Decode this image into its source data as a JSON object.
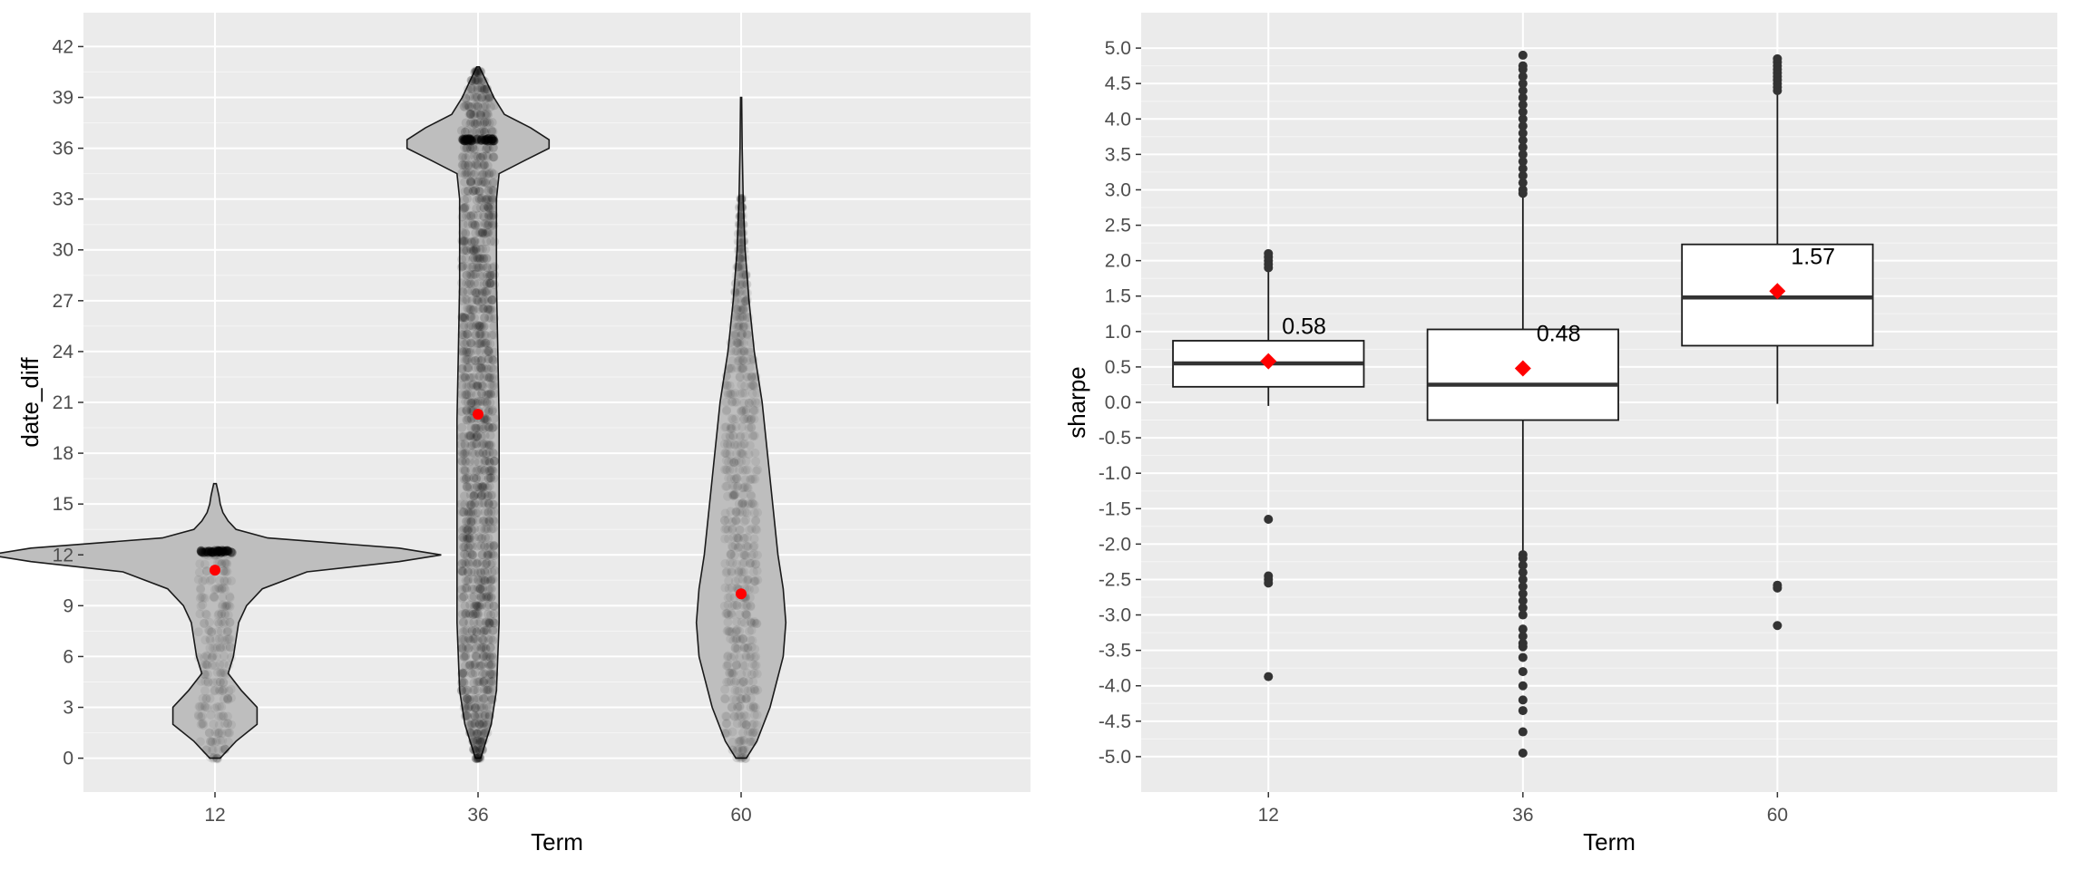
{
  "chart_data": [
    {
      "type": "violin",
      "xlabel": "Term",
      "ylabel": "date_diff",
      "categories": [
        "12",
        "36",
        "60"
      ],
      "ylim": [
        -2,
        44
      ],
      "yticks": [
        0,
        3,
        6,
        9,
        12,
        15,
        18,
        21,
        24,
        27,
        30,
        33,
        36,
        39,
        42
      ],
      "grid": true,
      "means": [
        11.1,
        20.3,
        9.7
      ],
      "mean_color": "#ff0000",
      "violin_fill": "#bebebe",
      "violins": [
        {
          "category": "12",
          "y": [
            0,
            1,
            2,
            3,
            4,
            5,
            6,
            7,
            8,
            9,
            10,
            11,
            11.6,
            12,
            12.4,
            13,
            13.5,
            14,
            14.5,
            15,
            15.5,
            16.2
          ],
          "width": [
            0.02,
            0.08,
            0.16,
            0.16,
            0.1,
            0.05,
            0.07,
            0.08,
            0.09,
            0.12,
            0.18,
            0.35,
            0.7,
            0.86,
            0.7,
            0.2,
            0.08,
            0.05,
            0.03,
            0.02,
            0.015,
            0.005
          ]
        },
        {
          "category": "36",
          "y": [
            0,
            2,
            4,
            8,
            12,
            16,
            20,
            24,
            28,
            31,
            33,
            34.5,
            35.3,
            36,
            36.5,
            37.2,
            38,
            39,
            40,
            40.8
          ],
          "width": [
            0.01,
            0.05,
            0.07,
            0.08,
            0.08,
            0.08,
            0.08,
            0.075,
            0.07,
            0.07,
            0.07,
            0.08,
            0.18,
            0.27,
            0.27,
            0.2,
            0.1,
            0.06,
            0.03,
            0.005
          ]
        },
        {
          "category": "60",
          "y": [
            0,
            1,
            3,
            6,
            8,
            10,
            12,
            15,
            18,
            21,
            24,
            27,
            30,
            33,
            36,
            39
          ],
          "width": [
            0.02,
            0.06,
            0.11,
            0.16,
            0.17,
            0.16,
            0.14,
            0.12,
            0.1,
            0.08,
            0.05,
            0.03,
            0.015,
            0.008,
            0.004,
            0.002
          ]
        }
      ],
      "point_bands": [
        {
          "category": "12",
          "y": [
            0,
            12.3
          ],
          "dense_y": 12.2
        },
        {
          "category": "36",
          "y": [
            0,
            40.8
          ],
          "dense_y": 36.5
        },
        {
          "category": "60",
          "y": [
            0,
            33
          ]
        }
      ]
    },
    {
      "type": "box",
      "xlabel": "Term",
      "ylabel": "sharpe",
      "categories": [
        "12",
        "36",
        "60"
      ],
      "ylim": [
        -5.5,
        5.5
      ],
      "yticks": [
        -5.0,
        -4.5,
        -4.0,
        -3.5,
        -3.0,
        -2.5,
        -2.0,
        -1.5,
        -1.0,
        -0.5,
        0.0,
        0.5,
        1.0,
        1.5,
        2.0,
        2.5,
        3.0,
        3.5,
        4.0,
        4.5,
        5.0
      ],
      "tick_labels": [
        "-5.0",
        "-4.5",
        "-4.0",
        "-3.5",
        "-3.0",
        "-2.5",
        "-2.0",
        "-1.5",
        "-1.0",
        "-0.5",
        "0.0",
        "0.5",
        "1.0",
        "1.5",
        "2.0",
        "2.5",
        "3.0",
        "3.5",
        "4.0",
        "4.5",
        "5.0"
      ],
      "grid": true,
      "mean_color": "#ff0000",
      "boxes": [
        {
          "category": "12",
          "q1": 0.22,
          "median": 0.55,
          "q3": 0.87,
          "whisker_low": -0.05,
          "whisker_high": 1.85,
          "mean": 0.58,
          "outliers": [
            1.9,
            1.95,
            2.0,
            2.05,
            2.1,
            -1.65,
            -2.45,
            -2.5,
            -2.55,
            -3.87
          ]
        },
        {
          "category": "36",
          "q1": -0.25,
          "median": 0.25,
          "q3": 1.03,
          "whisker_low": -2.1,
          "whisker_high": 2.9,
          "mean": 0.48,
          "outliers": [
            2.95,
            3.0,
            3.1,
            3.2,
            3.3,
            3.4,
            3.5,
            3.6,
            3.7,
            3.8,
            3.9,
            4.0,
            4.1,
            4.2,
            4.3,
            4.4,
            4.5,
            4.6,
            4.7,
            4.75,
            4.9,
            -2.15,
            -2.2,
            -2.3,
            -2.4,
            -2.5,
            -2.6,
            -2.7,
            -2.8,
            -2.9,
            -3.0,
            -3.2,
            -3.3,
            -3.4,
            -3.45,
            -3.6,
            -3.8,
            -4.0,
            -4.2,
            -4.35,
            -4.65,
            -4.95
          ]
        },
        {
          "category": "60",
          "q1": 0.8,
          "median": 1.48,
          "q3": 2.23,
          "whisker_low": -0.02,
          "whisker_high": 4.35,
          "mean": 1.57,
          "outliers": [
            4.4,
            4.45,
            4.5,
            4.55,
            4.6,
            4.65,
            4.7,
            4.75,
            4.8,
            4.85,
            -2.58,
            -2.62,
            -3.15
          ]
        }
      ],
      "mean_labels": [
        "0.58",
        "0.48",
        "1.57"
      ]
    }
  ]
}
